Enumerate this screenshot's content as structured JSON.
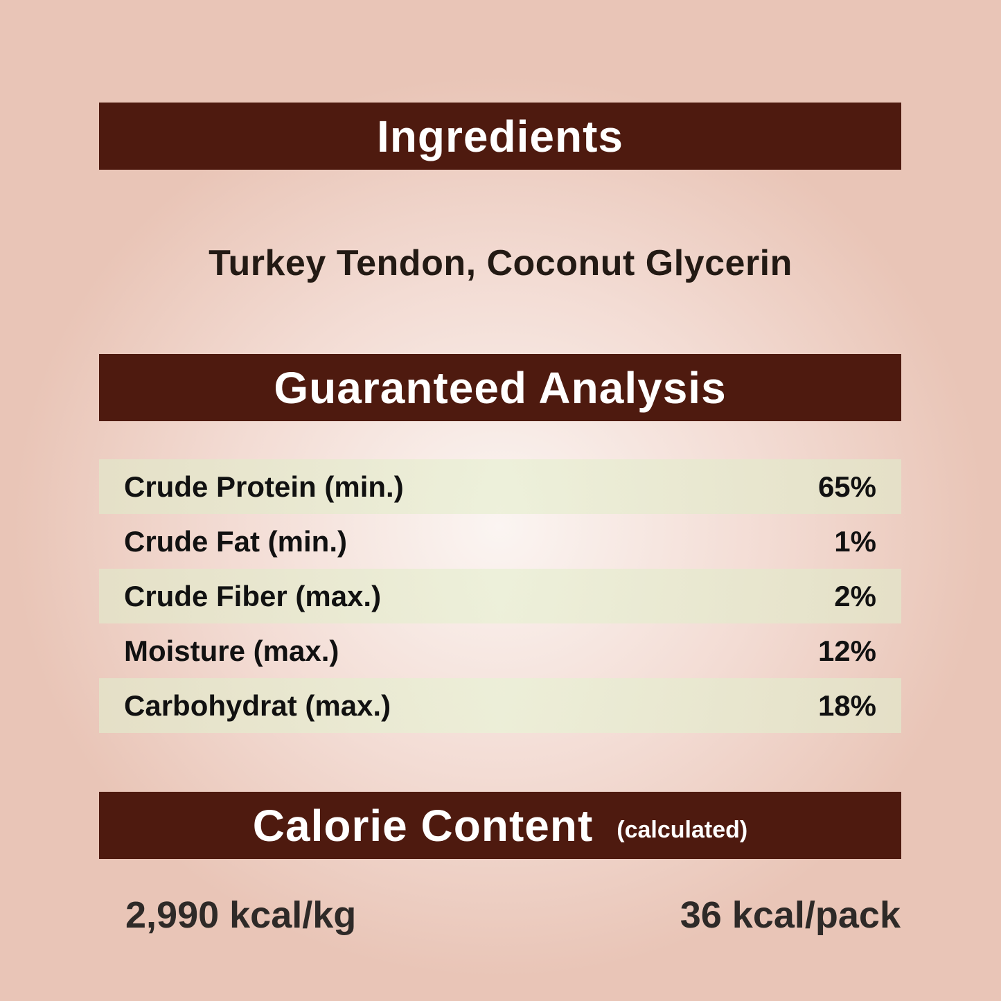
{
  "ingredients": {
    "heading": "Ingredients",
    "text": "Turkey Tendon, Coconut Glycerin"
  },
  "analysis": {
    "heading": "Guaranteed Analysis",
    "rows": [
      {
        "label": "Crude Protein (min.)",
        "value": "65%"
      },
      {
        "label": "Crude Fat (min.)",
        "value": "1%"
      },
      {
        "label": "Crude Fiber (max.)",
        "value": "2%"
      },
      {
        "label": "Moisture (max.)",
        "value": "12%"
      },
      {
        "label": "Carbohydrat (max.)",
        "value": "18%"
      }
    ]
  },
  "calorie": {
    "heading": "Calorie Content",
    "subheading": "(calculated)",
    "per_kg": "2,990 kcal/kg",
    "per_pack": "36 kcal/pack"
  },
  "colors": {
    "header_bar": "#4e1a0f",
    "background": "#efd3c8",
    "row_stripe": "#e6e4cc"
  }
}
